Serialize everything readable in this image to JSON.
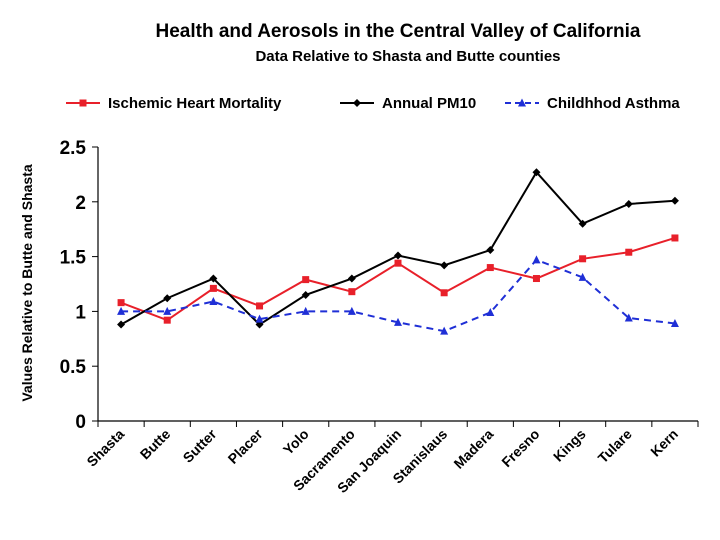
{
  "chart_data": {
    "type": "line",
    "title": "Health and Aerosols in the Central Valley of California",
    "subtitle": "Data Relative to Shasta and Butte counties",
    "xlabel": "",
    "ylabel": "Values Relative to Butte and Shasta",
    "ylim": [
      0,
      2.5
    ],
    "yticks": [
      0,
      0.5,
      1,
      1.5,
      2,
      2.5
    ],
    "ytick_labels": [
      "0",
      "0.5",
      "1",
      "1.5",
      "2",
      "2.5"
    ],
    "grid": false,
    "legend_position": "top",
    "categories": [
      "Shasta",
      "Butte",
      "Sutter",
      "Placer",
      "Yolo",
      "Sacramento",
      "San Joaquin",
      "Stanislaus",
      "Madera",
      "Fresno",
      "Kings",
      "Tulare",
      "Kern"
    ],
    "series": [
      {
        "name": "Ischemic  Heart Mortality",
        "color": "#e8202a",
        "line_style": "solid",
        "marker": "square",
        "values": [
          1.08,
          0.92,
          1.21,
          1.05,
          1.29,
          1.18,
          1.44,
          1.17,
          1.4,
          1.3,
          1.48,
          1.54,
          1.67
        ]
      },
      {
        "name": "Annual PM10",
        "color": "#000000",
        "line_style": "solid",
        "marker": "diamond",
        "values": [
          0.88,
          1.12,
          1.3,
          0.88,
          1.15,
          1.3,
          1.51,
          1.42,
          1.56,
          2.27,
          1.8,
          1.98,
          2.01
        ]
      },
      {
        "name": "Childhhod Asthma",
        "color": "#1f2fd6",
        "line_style": "dashed",
        "marker": "triangle",
        "values": [
          1.0,
          1.0,
          1.09,
          0.93,
          1.0,
          1.0,
          0.9,
          0.82,
          0.99,
          1.47,
          1.31,
          0.94,
          0.89
        ]
      }
    ]
  }
}
